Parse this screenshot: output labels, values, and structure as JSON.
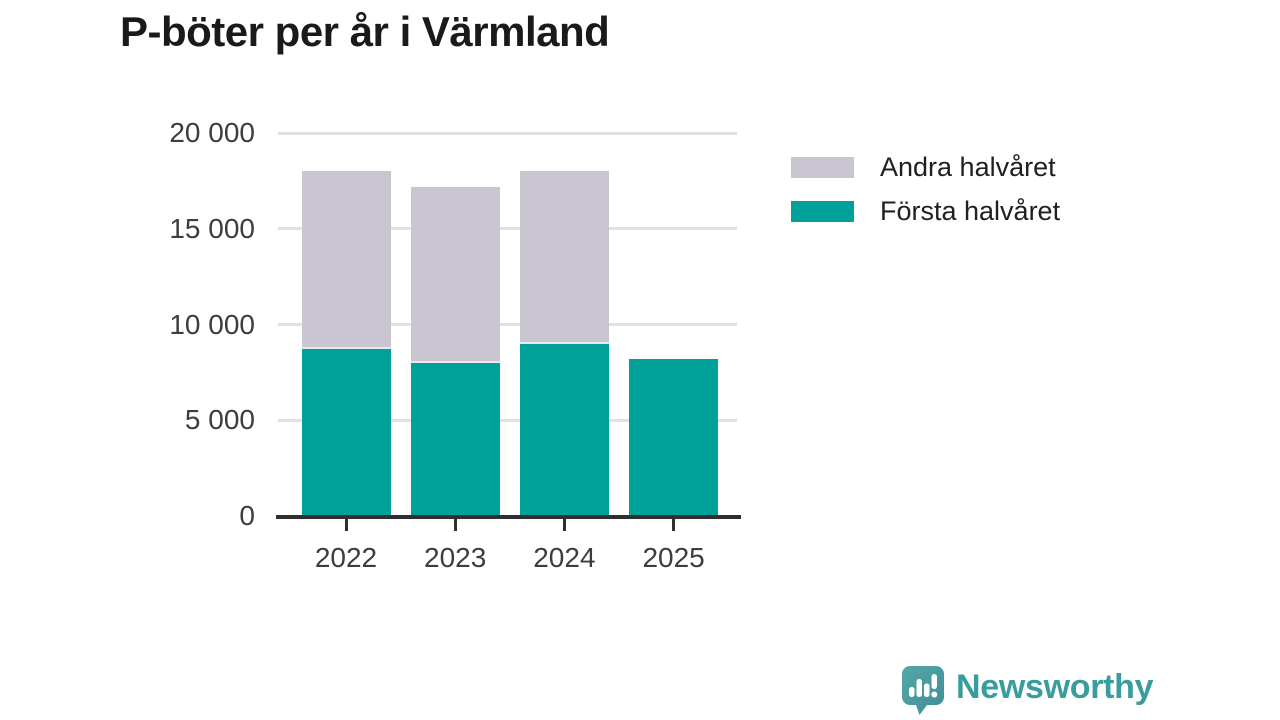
{
  "title": "P-böter per år i Värmland",
  "colors": {
    "first_half_teal": "#00a199",
    "second_half_gray": "#c9c6d2",
    "gridline": "#e1e1e1",
    "axis": "#2f2f2f",
    "tick_label": "#3d3d3d",
    "title_text": "#1a1a1a",
    "brand_teal": "#399d9d"
  },
  "chart_data": {
    "type": "bar",
    "stacked": true,
    "title": "P-böter per år i Värmland",
    "xlabel": "",
    "ylabel": "",
    "categories": [
      "2022",
      "2023",
      "2024",
      "2025"
    ],
    "series": [
      {
        "name": "Första halvåret",
        "color": "#00a199",
        "values": [
          8700,
          8000,
          9000,
          8200
        ]
      },
      {
        "name": "Andra halvåret",
        "color": "#c9c6d2",
        "values": [
          9300,
          9200,
          9000,
          0
        ]
      }
    ],
    "ylim": [
      0,
      20000
    ],
    "yticks": [
      {
        "value": 0,
        "label": "0"
      },
      {
        "value": 5000,
        "label": "5 000"
      },
      {
        "value": 10000,
        "label": "10 000"
      },
      {
        "value": 15000,
        "label": "15 000"
      },
      {
        "value": 20000,
        "label": "20 000"
      }
    ],
    "grid": "horizontal",
    "legend_position": "right-top"
  },
  "legend": {
    "items": [
      {
        "label": "Andra halvåret",
        "color": "#c9c6d2"
      },
      {
        "label": "Första halvåret",
        "color": "#00a199"
      }
    ]
  },
  "footer": {
    "brand_name": "Newsworthy"
  }
}
